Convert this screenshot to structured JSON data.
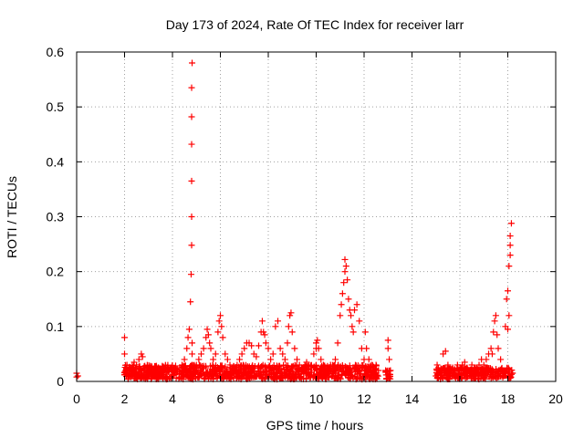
{
  "chart_data": {
    "type": "scatter",
    "title": "Day 173 of 2024, Rate Of TEC Index for receiver larr",
    "xlabel": "GPS time / hours",
    "ylabel": "ROTI / TECUs",
    "xlim": [
      0,
      20
    ],
    "ylim": [
      0,
      0.6
    ],
    "xticks": [
      "0",
      "2",
      "4",
      "6",
      "8",
      "10",
      "12",
      "14",
      "16",
      "18",
      "20"
    ],
    "xtick_values": [
      0,
      2,
      4,
      6,
      8,
      10,
      12,
      14,
      16,
      18,
      20
    ],
    "yticks": [
      "0",
      "0.1",
      "0.2",
      "0.3",
      "0.4",
      "0.5",
      "0.6"
    ],
    "ytick_values": [
      0,
      0.1,
      0.2,
      0.3,
      0.4,
      0.5,
      0.6
    ],
    "grid": true,
    "marker": "+",
    "series": [
      {
        "name": "ROTI",
        "color": "#ff0000",
        "x": [
          0.0,
          0.0,
          0.05,
          2.0,
          2.0,
          2.0,
          2.05,
          2.1,
          2.2,
          2.3,
          2.4,
          2.5,
          2.6,
          2.7,
          2.75,
          2.8,
          2.9,
          3.0,
          3.1,
          3.2,
          3.3,
          3.4,
          3.5,
          3.6,
          3.7,
          3.8,
          3.9,
          4.0,
          4.1,
          4.2,
          4.3,
          4.4,
          4.5,
          4.6,
          4.65,
          4.7,
          4.75,
          4.78,
          4.8,
          4.8,
          4.8,
          4.8,
          4.8,
          4.8,
          4.82,
          4.82,
          4.82,
          4.82,
          4.85,
          4.9,
          5.0,
          5.1,
          5.2,
          5.3,
          5.4,
          5.45,
          5.5,
          5.55,
          5.6,
          5.7,
          5.8,
          5.9,
          5.95,
          6.0,
          6.05,
          6.1,
          6.2,
          6.3,
          6.4,
          6.5,
          6.6,
          6.7,
          6.8,
          6.9,
          7.0,
          7.1,
          7.2,
          7.3,
          7.4,
          7.5,
          7.6,
          7.7,
          7.75,
          7.8,
          7.85,
          7.9,
          8.0,
          8.1,
          8.2,
          8.3,
          8.4,
          8.5,
          8.6,
          8.7,
          8.8,
          8.85,
          8.9,
          8.95,
          9.0,
          9.1,
          9.2,
          9.3,
          9.4,
          9.5,
          9.6,
          9.7,
          9.8,
          9.9,
          10.0,
          10.0,
          10.05,
          10.1,
          10.2,
          10.3,
          10.4,
          10.5,
          10.6,
          10.7,
          10.8,
          10.9,
          11.0,
          11.05,
          11.1,
          11.15,
          11.2,
          11.2,
          11.25,
          11.3,
          11.35,
          11.4,
          11.45,
          11.5,
          11.55,
          11.6,
          11.7,
          11.8,
          11.9,
          12.0,
          12.05,
          12.1,
          12.2,
          12.3,
          12.4,
          12.5,
          12.6,
          12.9,
          13.0,
          13.0,
          13.05,
          13.1,
          15.0,
          15.05,
          15.1,
          15.2,
          15.3,
          15.4,
          15.5,
          15.6,
          15.7,
          15.8,
          15.9,
          16.0,
          16.1,
          16.2,
          16.3,
          16.4,
          16.5,
          16.6,
          16.7,
          16.8,
          16.9,
          17.0,
          17.1,
          17.2,
          17.3,
          17.35,
          17.4,
          17.45,
          17.5,
          17.55,
          17.6,
          17.7,
          17.8,
          17.9,
          17.95,
          18.0,
          18.0,
          18.05,
          18.05,
          18.1,
          18.1,
          18.1,
          18.15,
          18.2
        ],
        "y": [
          0.015,
          0.008,
          0.01,
          0.08,
          0.05,
          0.012,
          0.02,
          0.03,
          0.025,
          0.02,
          0.035,
          0.03,
          0.04,
          0.05,
          0.045,
          0.02,
          0.018,
          0.025,
          0.02,
          0.022,
          0.018,
          0.025,
          0.02,
          0.018,
          0.022,
          0.02,
          0.025,
          0.018,
          0.02,
          0.022,
          0.025,
          0.03,
          0.04,
          0.06,
          0.08,
          0.095,
          0.145,
          0.195,
          0.248,
          0.3,
          0.365,
          0.432,
          0.482,
          0.535,
          0.58,
          0.07,
          0.05,
          0.03,
          0.025,
          0.02,
          0.03,
          0.04,
          0.05,
          0.06,
          0.08,
          0.095,
          0.085,
          0.07,
          0.06,
          0.04,
          0.05,
          0.09,
          0.11,
          0.12,
          0.1,
          0.08,
          0.05,
          0.04,
          0.03,
          0.025,
          0.02,
          0.03,
          0.04,
          0.05,
          0.06,
          0.07,
          0.07,
          0.065,
          0.05,
          0.045,
          0.065,
          0.09,
          0.11,
          0.09,
          0.085,
          0.07,
          0.06,
          0.04,
          0.05,
          0.1,
          0.11,
          0.06,
          0.05,
          0.04,
          0.07,
          0.1,
          0.12,
          0.125,
          0.09,
          0.06,
          0.04,
          0.03,
          0.02,
          0.025,
          0.035,
          0.03,
          0.025,
          0.05,
          0.06,
          0.07,
          0.075,
          0.06,
          0.04,
          0.03,
          0.02,
          0.025,
          0.03,
          0.02,
          0.04,
          0.07,
          0.12,
          0.14,
          0.16,
          0.18,
          0.2,
          0.222,
          0.21,
          0.185,
          0.15,
          0.13,
          0.12,
          0.1,
          0.09,
          0.13,
          0.14,
          0.11,
          0.06,
          0.04,
          0.09,
          0.06,
          0.04,
          0.03,
          0.02,
          0.03,
          0.02,
          0.02,
          0.06,
          0.075,
          0.04,
          0.02,
          0.01,
          0.03,
          0.025,
          0.02,
          0.05,
          0.055,
          0.03,
          0.02,
          0.025,
          0.02,
          0.03,
          0.025,
          0.03,
          0.035,
          0.025,
          0.02,
          0.03,
          0.025,
          0.02,
          0.03,
          0.04,
          0.03,
          0.04,
          0.05,
          0.06,
          0.05,
          0.09,
          0.11,
          0.12,
          0.085,
          0.06,
          0.04,
          0.02,
          0.1,
          0.15,
          0.165,
          0.095,
          0.12,
          0.21,
          0.23,
          0.248,
          0.265,
          0.288,
          0.015
        ]
      }
    ],
    "dense_band": {
      "description": "continuous dense points near baseline",
      "segments": [
        {
          "x_start": 2.0,
          "x_end": 12.6,
          "y_min": 0.0,
          "y_max": 0.03
        },
        {
          "x_start": 12.9,
          "x_end": 13.1,
          "y_min": 0.0,
          "y_max": 0.02
        },
        {
          "x_start": 15.0,
          "x_end": 18.2,
          "y_min": 0.0,
          "y_max": 0.025
        }
      ]
    }
  }
}
